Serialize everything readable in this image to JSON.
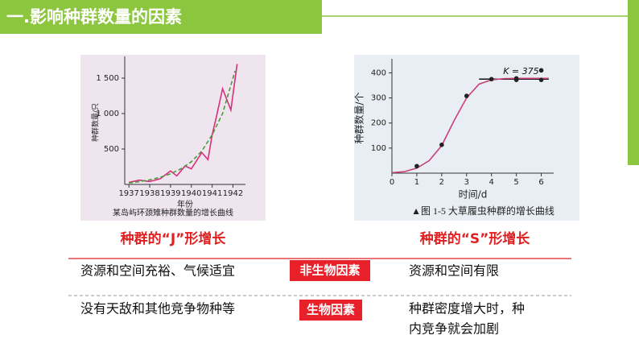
{
  "header": {
    "title": "一.影响种群数量的因素"
  },
  "figures": [
    {
      "type": "line",
      "y_label": "种群数量/只",
      "x_label": "年份",
      "caption": "某岛屿环颈雉种群数量的增长曲线",
      "xlim": [
        1936.8,
        1942.6
      ],
      "ylim": [
        0,
        1750
      ],
      "xticks": [
        1937,
        1938,
        1939,
        1940,
        1941,
        1942
      ],
      "yticks": [
        500,
        {
          "value": 1000,
          "label": "1 000"
        },
        {
          "value": 1500,
          "label": "1 500"
        }
      ],
      "series": [
        {
          "style": "solid",
          "color": "#d6307a",
          "x": [
            1937,
            1937.5,
            1938,
            1938.5,
            1939,
            1939.3,
            1939.7,
            1940,
            1940.5,
            1940.8,
            1941,
            1941.2,
            1941.5,
            1941.9,
            1942.2
          ],
          "values": [
            30,
            60,
            40,
            80,
            190,
            120,
            260,
            220,
            450,
            350,
            700,
            950,
            1350,
            1050,
            1700
          ]
        },
        {
          "style": "dashed",
          "color": "#4a9a3a",
          "x": [
            1937,
            1937.5,
            1938,
            1938.5,
            1939,
            1939.5,
            1940,
            1940.5,
            1941,
            1941.5,
            1942,
            1942.1
          ],
          "values": [
            20,
            40,
            65,
            100,
            150,
            220,
            320,
            470,
            700,
            1000,
            1500,
            1600
          ]
        }
      ]
    },
    {
      "type": "line",
      "y_label": "种群数量/个",
      "x_label": "时间/d",
      "caption": "▲图 1-5  大草履虫种群的增长曲线",
      "xlim": [
        0,
        6.5
      ],
      "ylim": [
        0,
        440
      ],
      "xticks": [
        0,
        1,
        2,
        3,
        4,
        5,
        6
      ],
      "yticks": [
        100,
        200,
        300,
        400
      ],
      "annotation": "K = 375",
      "k_value": 375,
      "k_range": [
        3.5,
        6.3
      ],
      "series": [
        {
          "style": "solid",
          "color": "#c9407a",
          "x": [
            0,
            0.5,
            1,
            1.5,
            2,
            2.5,
            3,
            3.5,
            4,
            4.5,
            5,
            6,
            6.3
          ],
          "values": [
            2,
            6,
            20,
            50,
            110,
            210,
            300,
            355,
            372,
            377,
            378,
            378,
            378
          ]
        },
        {
          "style": "points",
          "color": "#222222",
          "x": [
            1,
            2,
            3,
            4,
            5,
            5,
            6,
            6
          ],
          "values": [
            28,
            113,
            308,
            375,
            378,
            372,
            410,
            372
          ]
        }
      ]
    }
  ],
  "labels": {
    "j_growth": "种群的“J”形增长",
    "s_growth": "种群的“S”形增长"
  },
  "table": {
    "rows": [
      [
        "资源和空间充裕、气候适宜",
        "非生物因素",
        "资源和空间有限"
      ],
      [
        "没有天敌和其他竞争物种等",
        "生物因素",
        "种群密度增大时，种",
        "内竞争就会加剧"
      ]
    ]
  }
}
